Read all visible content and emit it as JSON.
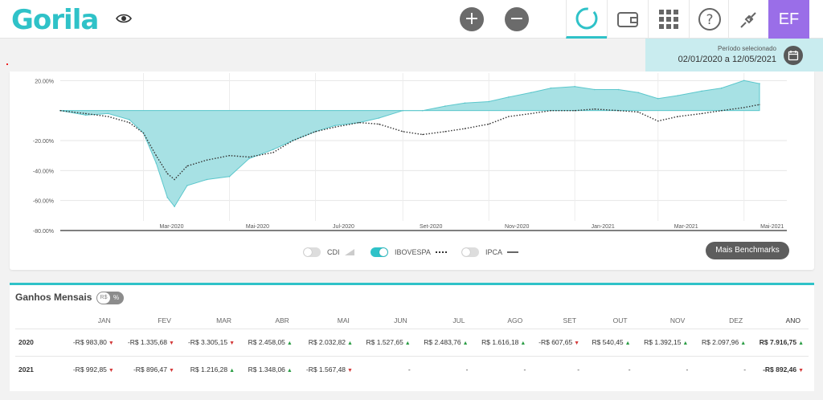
{
  "header": {
    "logo": "Gorila",
    "zoom_in": "+",
    "zoom_out": "−",
    "nav_icons": [
      "loading-ring-icon",
      "wallet-icon",
      "grid-icon",
      "help-icon",
      "plug-icon"
    ],
    "avatar_initials": "EF"
  },
  "period": {
    "label": "Período selecionado",
    "value": "02/01/2020 a 12/05/2021"
  },
  "chart": {
    "legend": [
      {
        "label": "CDI",
        "on": false
      },
      {
        "label": "IBOVESPA",
        "on": true
      },
      {
        "label": "IPCA",
        "on": false
      }
    ],
    "benchmarks_button": "Mais Benchmarks"
  },
  "chart_data": {
    "type": "area",
    "y_tick_labels": [
      "20.00%",
      "-20.00%",
      "-40.00%",
      "-60.00%",
      "-80.00%"
    ],
    "x_tick_labels": [
      "Mar-2020",
      "Mai-2020",
      "Jul-2020",
      "Set-2020",
      "Nov-2020",
      "Jan-2021",
      "Mar-2021",
      "Mai-2021"
    ],
    "ylim": [
      -80,
      25
    ],
    "x": [
      "2020-01-02",
      "2020-01-20",
      "2020-02-05",
      "2020-02-20",
      "2020-03-01",
      "2020-03-10",
      "2020-03-18",
      "2020-03-23",
      "2020-04-01",
      "2020-04-15",
      "2020-05-01",
      "2020-05-15",
      "2020-06-01",
      "2020-06-15",
      "2020-07-01",
      "2020-07-15",
      "2020-08-01",
      "2020-08-15",
      "2020-09-01",
      "2020-09-15",
      "2020-10-01",
      "2020-10-15",
      "2020-11-01",
      "2020-11-15",
      "2020-12-01",
      "2020-12-15",
      "2021-01-01",
      "2021-01-15",
      "2021-02-01",
      "2021-02-15",
      "2021-03-01",
      "2021-03-15",
      "2021-04-01",
      "2021-04-15",
      "2021-05-01",
      "2021-05-12"
    ],
    "series": [
      {
        "name": "",
        "color": "#7fd3d6",
        "values": [
          0,
          -3,
          -2,
          -6,
          -15,
          -35,
          -58,
          -64,
          -50,
          -46,
          -44,
          -32,
          -26,
          -20,
          -14,
          -10,
          -8,
          -5,
          0,
          0,
          3,
          5,
          6,
          9,
          12,
          15,
          16,
          14,
          14,
          12,
          8,
          10,
          13,
          15,
          20,
          18
        ]
      },
      {
        "name": "IBOVESPA",
        "color": "#333333",
        "values": [
          0,
          -2,
          -4,
          -8,
          -15,
          -30,
          -42,
          -46,
          -37,
          -33,
          -30,
          -31,
          -28,
          -20,
          -14,
          -11,
          -8,
          -9,
          -14,
          -16,
          -14,
          -12,
          -9,
          -4,
          -2,
          0,
          0,
          1,
          0,
          -1,
          -7,
          -4,
          -2,
          0,
          2,
          4
        ]
      }
    ]
  },
  "gains": {
    "title": "Ganhos Mensais",
    "toggle_left": "R$",
    "toggle_right": "%",
    "columns": [
      "JAN",
      "FEV",
      "MAR",
      "ABR",
      "MAI",
      "JUN",
      "JUL",
      "AGO",
      "SET",
      "OUT",
      "NOV",
      "DEZ",
      "ANO"
    ],
    "rows": [
      {
        "year": "2020",
        "cells": [
          {
            "value": "-R$ 983,80",
            "dir": "down"
          },
          {
            "value": "-R$ 1.335,68",
            "dir": "down"
          },
          {
            "value": "-R$ 3.305,15",
            "dir": "down"
          },
          {
            "value": "R$ 2.458,05",
            "dir": "up"
          },
          {
            "value": "R$ 2.032,82",
            "dir": "up"
          },
          {
            "value": "R$ 1.527,65",
            "dir": "up"
          },
          {
            "value": "R$ 2.483,76",
            "dir": "up"
          },
          {
            "value": "R$ 1.616,18",
            "dir": "up"
          },
          {
            "value": "-R$ 607,65",
            "dir": "down"
          },
          {
            "value": "R$ 540,45",
            "dir": "up"
          },
          {
            "value": "R$ 1.392,15",
            "dir": "up"
          },
          {
            "value": "R$ 2.097,96",
            "dir": "up"
          },
          {
            "value": "R$ 7.916,75",
            "dir": "up"
          }
        ]
      },
      {
        "year": "2021",
        "cells": [
          {
            "value": "-R$ 992,85",
            "dir": "down"
          },
          {
            "value": "-R$ 896,47",
            "dir": "down"
          },
          {
            "value": "R$ 1.216,28",
            "dir": "up"
          },
          {
            "value": "R$ 1.348,06",
            "dir": "up"
          },
          {
            "value": "-R$ 1.567,48",
            "dir": "down"
          },
          {
            "value": "-",
            "dir": ""
          },
          {
            "value": "-",
            "dir": ""
          },
          {
            "value": "-",
            "dir": ""
          },
          {
            "value": "-",
            "dir": ""
          },
          {
            "value": "-",
            "dir": ""
          },
          {
            "value": "-",
            "dir": ""
          },
          {
            "value": "-",
            "dir": ""
          },
          {
            "value": "-R$ 892,46",
            "dir": "down"
          }
        ]
      }
    ]
  }
}
